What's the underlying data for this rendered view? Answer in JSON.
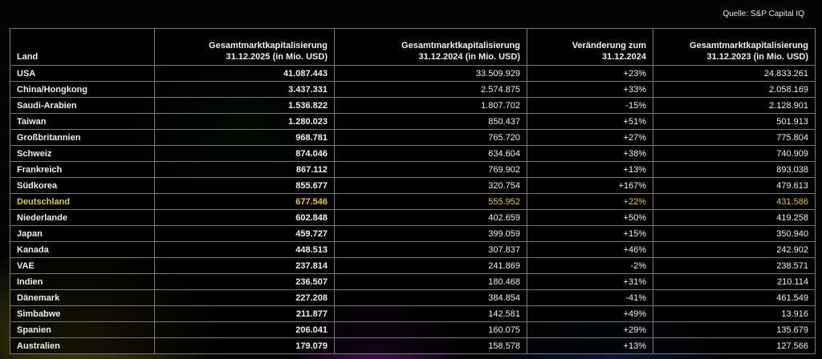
{
  "source": "Quelle: S&P Capital IQ",
  "colors": {
    "text": "#f0f0f0",
    "highlight": "#e5c73a",
    "border": "#7a7a7a"
  },
  "table": {
    "headers": [
      [
        "Land"
      ],
      [
        "Gesamtmarktkapitalisierung",
        "31.12.2025 (in Mio. USD)"
      ],
      [
        "Gesamtmarktkapitalisierung",
        "31.12.2024 (in Mio. USD)"
      ],
      [
        "Veränderung zum",
        "31.12.2024"
      ],
      [
        "Gesamtmarktkapitalisierung",
        "31.12.2023 (in Mio. USD)"
      ]
    ],
    "rows": [
      {
        "country": "USA",
        "v2025": "41.087.443",
        "v2024": "33.509.929",
        "change": "+23%",
        "v2023": "24.833.261",
        "highlight": false
      },
      {
        "country": "China/Hongkong",
        "v2025": "3.437.331",
        "v2024": "2.574.875",
        "change": "+33%",
        "v2023": "2.058.169",
        "highlight": false
      },
      {
        "country": "Saudi-Arabien",
        "v2025": "1.536.822",
        "v2024": "1.807.702",
        "change": "-15%",
        "v2023": "2.128.901",
        "highlight": false
      },
      {
        "country": "Taiwan",
        "v2025": "1.280.023",
        "v2024": "850.437",
        "change": "+51%",
        "v2023": "501.913",
        "highlight": false
      },
      {
        "country": "Großbritannien",
        "v2025": "968.781",
        "v2024": "765.720",
        "change": "+27%",
        "v2023": "775.804",
        "highlight": false
      },
      {
        "country": "Schweiz",
        "v2025": "874.046",
        "v2024": "634.604",
        "change": "+38%",
        "v2023": "740.909",
        "highlight": false
      },
      {
        "country": "Frankreich",
        "v2025": "867.112",
        "v2024": "769.902",
        "change": "+13%",
        "v2023": "893.038",
        "highlight": false
      },
      {
        "country": "Südkorea",
        "v2025": "855.677",
        "v2024": "320.754",
        "change": "+167%",
        "v2023": "479.613",
        "highlight": false
      },
      {
        "country": "Deutschland",
        "v2025": "677.546",
        "v2024": "555.952",
        "change": "+22%",
        "v2023": "431.586",
        "highlight": true
      },
      {
        "country": "Niederlande",
        "v2025": "602.848",
        "v2024": "402.659",
        "change": "+50%",
        "v2023": "419.258",
        "highlight": false
      },
      {
        "country": "Japan",
        "v2025": "459.727",
        "v2024": "399.059",
        "change": "+15%",
        "v2023": "350.940",
        "highlight": false
      },
      {
        "country": "Kanada",
        "v2025": "448.513",
        "v2024": "307.837",
        "change": "+46%",
        "v2023": "242.902",
        "highlight": false
      },
      {
        "country": "VAE",
        "v2025": "237.814",
        "v2024": "241.869",
        "change": "-2%",
        "v2023": "238.571",
        "highlight": false
      },
      {
        "country": "Indien",
        "v2025": "236.507",
        "v2024": "180.468",
        "change": "+31%",
        "v2023": "210.114",
        "highlight": false
      },
      {
        "country": "Dänemark",
        "v2025": "227.208",
        "v2024": "384.854",
        "change": "-41%",
        "v2023": "461.549",
        "highlight": false
      },
      {
        "country": "Simbabwe",
        "v2025": "211.877",
        "v2024": "142.581",
        "change": "+49%",
        "v2023": "13.916",
        "highlight": false
      },
      {
        "country": "Spanien",
        "v2025": "206.041",
        "v2024": "160.075",
        "change": "+29%",
        "v2023": "135.679",
        "highlight": false
      },
      {
        "country": "Australien",
        "v2025": "179.079",
        "v2024": "158.578",
        "change": "+13%",
        "v2023": "127.566",
        "highlight": false
      }
    ]
  }
}
